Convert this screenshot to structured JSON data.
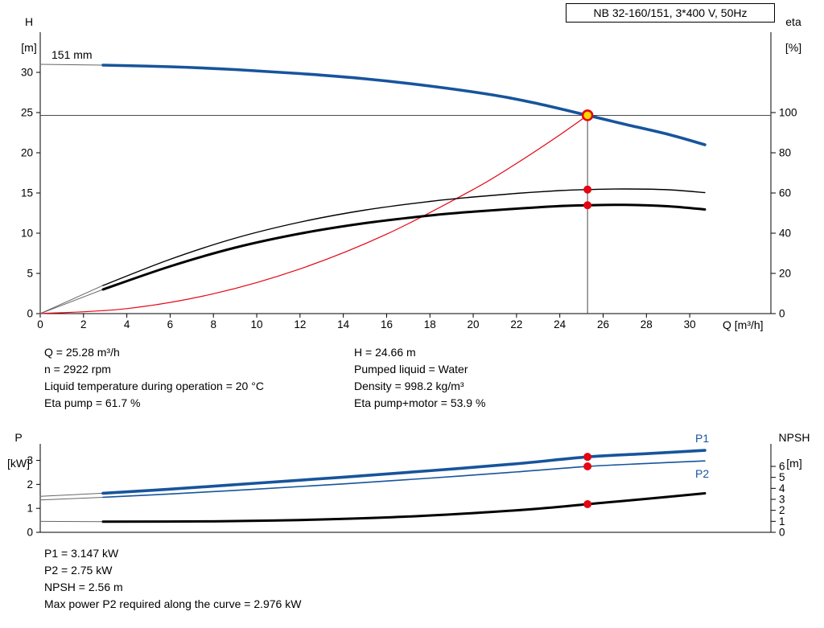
{
  "panel_title": "NB 32-160/151, 3*400 V, 50Hz",
  "chart_data": [
    {
      "id": "top",
      "type": "line",
      "title": "NB 32-160/151, 3*400 V, 50Hz",
      "xlabel": "Q [m³/h]",
      "impeller_label": "151 mm",
      "yaxis_left": {
        "name": "H",
        "unit": "[m]"
      },
      "yaxis_right": {
        "name": "eta",
        "unit": "[%]"
      },
      "xlim": [
        0,
        33.75
      ],
      "ylim_left": [
        0,
        35
      ],
      "ylim_right": [
        0,
        140
      ],
      "x_ticks": [
        0,
        2,
        4,
        6,
        8,
        10,
        12,
        14,
        16,
        18,
        20,
        22,
        24,
        26,
        28,
        30
      ],
      "y_ticks_left": [
        0,
        5,
        10,
        15,
        20,
        25,
        30
      ],
      "y_ticks_right": [
        0,
        20,
        40,
        60,
        80,
        100
      ],
      "grid": false,
      "legend": "none",
      "crosshair": {
        "q": 25.28,
        "h": 24.66
      },
      "series": [
        {
          "name": "head-curve-leader",
          "axis": "left",
          "color": "#666666",
          "width": 1,
          "points": [
            [
              0,
              31
            ],
            [
              2.9,
              30.9
            ]
          ]
        },
        {
          "name": "head-curve-151mm",
          "axis": "left",
          "color": "#17549C",
          "width": 3.6,
          "points": [
            [
              2.9,
              30.9
            ],
            [
              6,
              30.7
            ],
            [
              9,
              30.35
            ],
            [
              12,
              29.85
            ],
            [
              15,
              29.2
            ],
            [
              18,
              28.3
            ],
            [
              21,
              27.15
            ],
            [
              23,
              26.1
            ],
            [
              25.28,
              24.66
            ],
            [
              27,
              23.55
            ],
            [
              29,
              22.3
            ],
            [
              30.7,
              21.0
            ]
          ]
        },
        {
          "name": "system-curve",
          "axis": "left",
          "color": "#E30613",
          "width": 1.2,
          "points": [
            [
              0,
              0
            ],
            [
              4,
              0.62
            ],
            [
              8,
              2.47
            ],
            [
              12,
              5.56
            ],
            [
              16,
              9.88
            ],
            [
              20,
              15.44
            ],
            [
              22,
              18.68
            ],
            [
              24,
              22.23
            ],
            [
              25.28,
              24.66
            ]
          ]
        },
        {
          "name": "eta-pump-leader",
          "axis": "right",
          "color": "#666666",
          "width": 1,
          "points": [
            [
              0,
              0
            ],
            [
              2.9,
              14
            ]
          ]
        },
        {
          "name": "eta-pump-curve",
          "axis": "right",
          "color": "#000000",
          "width": 1.4,
          "points": [
            [
              2.9,
              14
            ],
            [
              6,
              27
            ],
            [
              9,
              37.5
            ],
            [
              12,
              45.5
            ],
            [
              15,
              51.5
            ],
            [
              18,
              55.8
            ],
            [
              20,
              58
            ],
            [
              22,
              59.8
            ],
            [
              24,
              61.2
            ],
            [
              25.28,
              61.7
            ],
            [
              27,
              62
            ],
            [
              29,
              61.6
            ],
            [
              30.7,
              60.2
            ]
          ]
        },
        {
          "name": "eta-pump-motor-leader",
          "axis": "right",
          "color": "#666666",
          "width": 1,
          "points": [
            [
              0,
              0
            ],
            [
              2.9,
              12
            ]
          ]
        },
        {
          "name": "eta-pump-motor-curve",
          "axis": "right",
          "color": "#000000",
          "width": 3,
          "points": [
            [
              2.9,
              12
            ],
            [
              6,
              23.5
            ],
            [
              9,
              32.8
            ],
            [
              12,
              39.8
            ],
            [
              15,
              45
            ],
            [
              18,
              48.8
            ],
            [
              20,
              50.7
            ],
            [
              22,
              52.2
            ],
            [
              24,
              53.5
            ],
            [
              25.28,
              53.9
            ],
            [
              27,
              54.1
            ],
            [
              29,
              53.4
            ],
            [
              30.7,
              51.8
            ]
          ]
        }
      ],
      "markers": [
        {
          "name": "duty-point",
          "style": "duty",
          "axis": "left",
          "x": 25.28,
          "y": 24.66
        },
        {
          "name": "eta-pump-point",
          "style": "red",
          "axis": "right",
          "x": 25.28,
          "y": 61.7
        },
        {
          "name": "eta-pump-motor-point",
          "style": "red",
          "axis": "right",
          "x": 25.28,
          "y": 53.9
        }
      ]
    },
    {
      "id": "bottom",
      "type": "line",
      "title": "",
      "xlabel": "",
      "yaxis_left": {
        "name": "P",
        "unit": "[kW]"
      },
      "yaxis_right": {
        "name": "NPSH",
        "unit": "[m]"
      },
      "xlim": [
        0,
        33.75
      ],
      "ylim_left": [
        0,
        3.69
      ],
      "ylim_right": [
        0,
        8.05
      ],
      "x_ticks": [],
      "y_ticks_left": [
        0,
        1,
        2,
        3
      ],
      "y_ticks_right": [
        0,
        1,
        2,
        3,
        4,
        5,
        6
      ],
      "grid": false,
      "legend": "inline",
      "labels": {
        "p1": "P1",
        "p2": "P2"
      },
      "series": [
        {
          "name": "p1-leader",
          "axis": "left",
          "color": "#666666",
          "width": 1,
          "points": [
            [
              0,
              1.5
            ],
            [
              2.9,
              1.63
            ]
          ]
        },
        {
          "name": "p1-curve",
          "axis": "left",
          "color": "#17549C",
          "width": 3.6,
          "points": [
            [
              2.9,
              1.63
            ],
            [
              6,
              1.8
            ],
            [
              10,
              2.05
            ],
            [
              14,
              2.3
            ],
            [
              18,
              2.57
            ],
            [
              22,
              2.86
            ],
            [
              25.28,
              3.147
            ],
            [
              28,
              3.28
            ],
            [
              30.7,
              3.42
            ]
          ]
        },
        {
          "name": "p2-leader",
          "axis": "left",
          "color": "#666666",
          "width": 1,
          "points": [
            [
              0,
              1.35
            ],
            [
              2.9,
              1.46
            ]
          ]
        },
        {
          "name": "p2-curve",
          "axis": "left",
          "color": "#17549C",
          "width": 1.6,
          "points": [
            [
              2.9,
              1.46
            ],
            [
              6,
              1.6
            ],
            [
              10,
              1.8
            ],
            [
              14,
              2.02
            ],
            [
              18,
              2.26
            ],
            [
              22,
              2.52
            ],
            [
              25.28,
              2.75
            ],
            [
              28,
              2.87
            ],
            [
              30.7,
              2.98
            ]
          ]
        },
        {
          "name": "npsh-leader",
          "axis": "right",
          "color": "#666666",
          "width": 1,
          "points": [
            [
              0,
              1.0
            ],
            [
              2.9,
              0.97
            ]
          ]
        },
        {
          "name": "npsh-curve",
          "axis": "right",
          "color": "#000000",
          "width": 3,
          "points": [
            [
              2.9,
              0.97
            ],
            [
              8,
              1.0
            ],
            [
              12,
              1.12
            ],
            [
              16,
              1.35
            ],
            [
              20,
              1.75
            ],
            [
              23,
              2.15
            ],
            [
              25.28,
              2.56
            ],
            [
              28,
              3.05
            ],
            [
              30.7,
              3.55
            ]
          ]
        }
      ],
      "markers": [
        {
          "name": "p1-point",
          "style": "red",
          "axis": "left",
          "x": 25.28,
          "y": 3.147
        },
        {
          "name": "p2-point",
          "style": "red",
          "axis": "left",
          "x": 25.28,
          "y": 2.75
        },
        {
          "name": "npsh-point",
          "style": "red",
          "axis": "right",
          "x": 25.28,
          "y": 2.56
        }
      ]
    }
  ],
  "mid_info": {
    "left": [
      "Q = 25.28 m³/h",
      "n = 2922 rpm",
      "Liquid temperature during operation = 20 °C",
      "Eta pump = 61.7 %"
    ],
    "right": [
      "H = 24.66 m",
      "Pumped liquid = Water",
      "Density = 998.2 kg/m³",
      "Eta pump+motor = 53.9 %"
    ]
  },
  "bottom_info": [
    "P1 = 3.147 kW",
    "P2 = 2.75 kW",
    "NPSH = 2.56 m",
    "Max power P2 required along the curve = 2.976 kW"
  ],
  "colors": {
    "curve_blue": "#17549C",
    "system_red": "#E30613",
    "duty_yellow": "#FFD500",
    "black": "#000000"
  }
}
